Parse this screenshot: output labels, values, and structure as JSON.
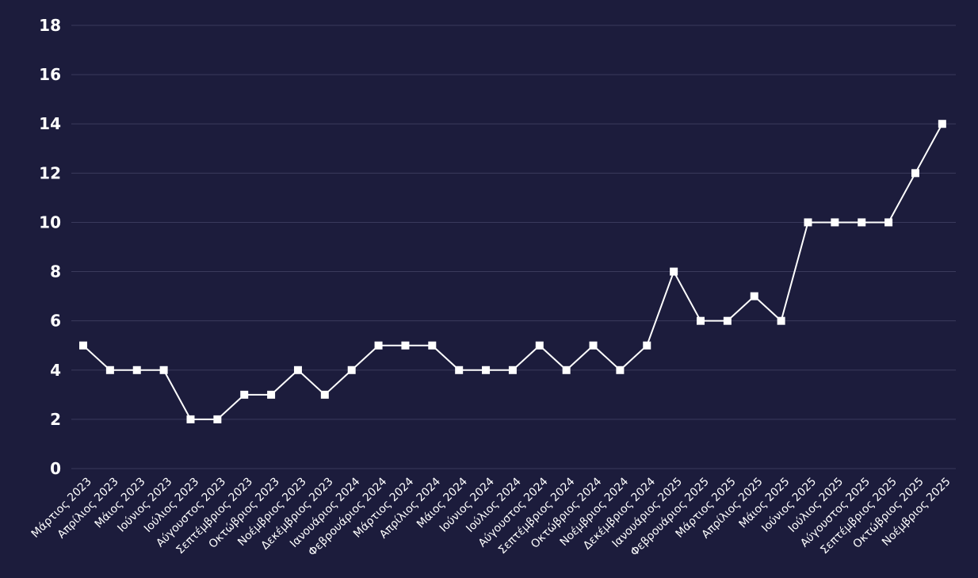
{
  "chart_data": {
    "type": "line",
    "categories": [
      "Μάρτιος 2023",
      "Απρίλιος 2023",
      "Μάιος 2023",
      "Ιούνιος 2023",
      "Ιούλιος 2023",
      "Αύγουστος 2023",
      "Σεπτέμβριος 2023",
      "Οκτώβριος 2023",
      "Νοέμβριος 2023",
      "Δεκέμβριος 2023",
      "Ιανουάριος 2024",
      "Φεβρουάριος 2024",
      "Μάρτιος 2024",
      "Απρίλιος 2024",
      "Μάιος 2024",
      "Ιούνιος 2024",
      "Ιούλιος 2024",
      "Αύγουστος 2024",
      "Σεπτέμβριος 2024",
      "Οκτώβριος 2024",
      "Νοέμβριος 2024",
      "Δεκέμβριος 2024",
      "Ιανουάριος 2025",
      "Φεβρουάριος 2025",
      "Μάρτιος 2025",
      "Απρίλιος 2025",
      "Μάιος 2025",
      "Ιούνιος 2025",
      "Ιούλιος 2025",
      "Αύγουστος 2025",
      "Σεπτέμβριος 2025",
      "Οκτώβριος 2025",
      "Νοέμβριος 2025"
    ],
    "series": [
      {
        "values": [
          5,
          4,
          4,
          4,
          2,
          2,
          3,
          3,
          4,
          3,
          4,
          5,
          5,
          5,
          4,
          4,
          4,
          5,
          4,
          5,
          4,
          5,
          8,
          6,
          6,
          7,
          6,
          10,
          10,
          10,
          10,
          12,
          14
        ]
      }
    ],
    "yticks": [
      "0",
      "2",
      "4",
      "6",
      "8",
      "10",
      "12",
      "14",
      "16",
      "18"
    ],
    "ylim": [
      0,
      18
    ],
    "grid": true,
    "colors": {
      "background": "#1c1c3c",
      "line": "#ffffff",
      "grid": "#3a3a5c"
    }
  }
}
